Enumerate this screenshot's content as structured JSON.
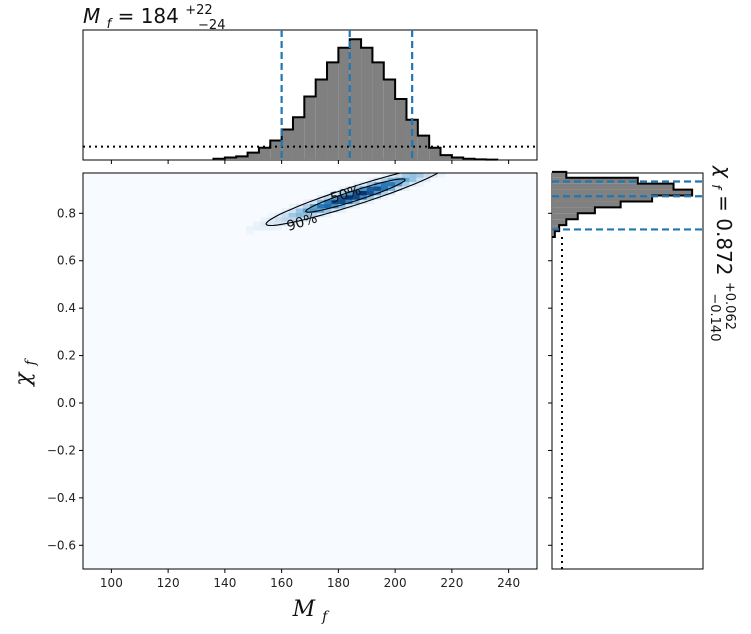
{
  "chart_data": [
    {
      "type": "histogram",
      "panel": "top-marginal",
      "title_parts": {
        "var": "M",
        "sub": "f",
        "eq": " = ",
        "value": "184",
        "plus": "+22",
        "minus": "−24"
      },
      "xlim": [
        90,
        250
      ],
      "bin_width": 4,
      "bins_left_edges": [
        136,
        140,
        144,
        148,
        152,
        156,
        160,
        164,
        168,
        172,
        176,
        180,
        184,
        188,
        192,
        196,
        200,
        204,
        208,
        212,
        216,
        220,
        224,
        228,
        232
      ],
      "counts": [
        0.01,
        0.02,
        0.03,
        0.06,
        0.1,
        0.16,
        0.25,
        0.35,
        0.52,
        0.66,
        0.8,
        0.92,
        0.99,
        0.92,
        0.8,
        0.66,
        0.5,
        0.33,
        0.2,
        0.1,
        0.04,
        0.02,
        0.01,
        0.005,
        0.003
      ],
      "prior_level": 0.11,
      "credible_lines": [
        160,
        184,
        206
      ],
      "fill_color": "#808080",
      "line_color": "#1f77b4"
    },
    {
      "type": "heatmap",
      "panel": "joint",
      "xlabel": {
        "var": "M",
        "sub": "f"
      },
      "ylabel": {
        "var": "χ",
        "sub": "f"
      },
      "xlim": [
        90,
        250
      ],
      "ylim": [
        -0.7,
        0.97
      ],
      "xticks": [
        "100",
        "120",
        "140",
        "160",
        "180",
        "200",
        "220",
        "240"
      ],
      "xtick_values": [
        100,
        120,
        140,
        160,
        180,
        200,
        220,
        240
      ],
      "yticks": [
        "−0.6",
        "−0.4",
        "−0.2",
        "0.0",
        "0.2",
        "0.4",
        "0.6",
        "0.8"
      ],
      "ytick_values": [
        -0.6,
        -0.4,
        -0.2,
        0.0,
        0.2,
        0.4,
        0.6,
        0.8
      ],
      "density": {
        "mean_x": 186,
        "mean_y": 0.875,
        "sigma_major": 14,
        "sigma_minor": 0.018,
        "slope": 0.0038
      },
      "contours": [
        {
          "label": "50%",
          "x_range": [
            168,
            203
          ]
        },
        {
          "label": "90%",
          "x_range": [
            157,
            220
          ]
        }
      ],
      "colormap": [
        "#f7fbff",
        "#c6dbef",
        "#6baed6",
        "#2171b5",
        "#08306b"
      ]
    },
    {
      "type": "histogram",
      "panel": "right-marginal",
      "orientation": "horizontal",
      "title_parts": {
        "var": "χ",
        "sub": "f",
        "eq": " = ",
        "value": "0.872",
        "plus": "+0.062",
        "minus": "−0.140"
      },
      "ylim": [
        -0.7,
        0.97
      ],
      "bin_width": 0.025,
      "bins_lower_edges": [
        0.7,
        0.725,
        0.75,
        0.775,
        0.8,
        0.825,
        0.85,
        0.875,
        0.9,
        0.925,
        0.95
      ],
      "counts": [
        0.02,
        0.05,
        0.1,
        0.18,
        0.3,
        0.48,
        0.7,
        0.98,
        0.85,
        0.6,
        0.1
      ],
      "prior_level": 0.07,
      "credible_lines": [
        0.732,
        0.872,
        0.934
      ],
      "fill_color": "#808080",
      "line_color": "#1f77b4"
    }
  ]
}
